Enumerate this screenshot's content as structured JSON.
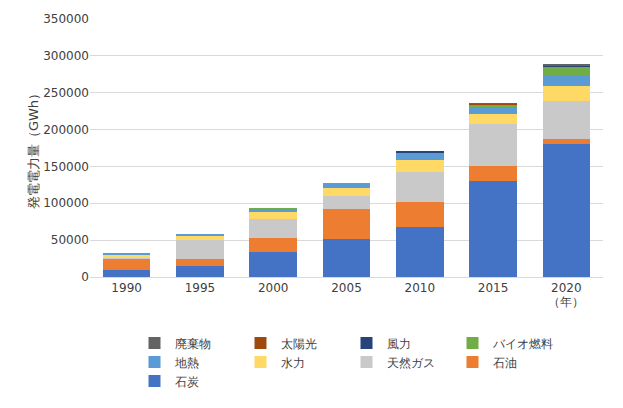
{
  "chart_data": {
    "type": "bar",
    "stacked": true,
    "y_label": "発電電力量（GWh）",
    "categories": [
      "1990",
      "1995",
      "2000",
      "2005",
      "2010",
      "2015",
      "2020"
    ],
    "annotations": [
      {
        "category": "2020",
        "text": "（年）"
      }
    ],
    "series": [
      {
        "name": "石炭",
        "color": "#4472c4",
        "values": [
          10000,
          15000,
          34000,
          52000,
          68000,
          130000,
          180000
        ]
      },
      {
        "name": "石油",
        "color": "#ed7d31",
        "values": [
          15000,
          10000,
          19000,
          40000,
          34000,
          20000,
          7000
        ]
      },
      {
        "name": "天然ガス",
        "color": "#c9c9c9",
        "values": [
          1000,
          25000,
          26000,
          18000,
          40000,
          57000,
          52000
        ]
      },
      {
        "name": "水力",
        "color": "#ffd966",
        "values": [
          5000,
          6000,
          9000,
          11000,
          17000,
          14000,
          20000
        ]
      },
      {
        "name": "地熱",
        "color": "#5b9bd5",
        "values": [
          1000,
          2500,
          5000,
          6000,
          9000,
          10000,
          15000
        ]
      },
      {
        "name": "バイオ燃料",
        "color": "#70ad47",
        "values": [
          0,
          0,
          500,
          300,
          1500,
          3000,
          12000
        ]
      },
      {
        "name": "風力",
        "color": "#264478",
        "values": [
          0,
          0,
          0,
          0,
          100,
          500,
          500
        ]
      },
      {
        "name": "太陽光",
        "color": "#9e480e",
        "values": [
          0,
          0,
          0,
          0,
          0,
          500,
          1000
        ]
      },
      {
        "name": "廃棄物",
        "color": "#636363",
        "values": [
          0,
          0,
          0,
          0,
          0,
          300,
          300
        ]
      }
    ],
    "ylim": [
      0,
      350000
    ],
    "yticks": [
      0,
      50000,
      100000,
      150000,
      200000,
      250000,
      300000,
      350000
    ],
    "grid": true,
    "legend": "bottom"
  }
}
